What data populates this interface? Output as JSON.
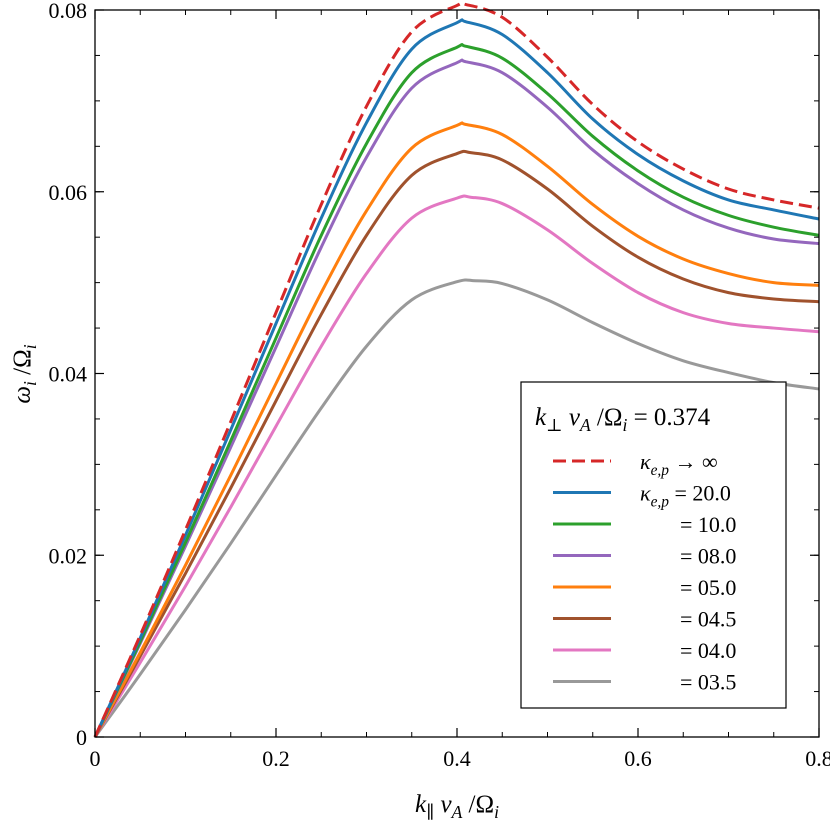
{
  "chart_data": {
    "type": "line",
    "xlabel": {
      "pre": "k",
      "sub1": "∥",
      "mid": " v",
      "sub2": "A",
      "slash": " /",
      "big": "Ω",
      "sub3": "i"
    },
    "ylabel": {
      "pre": "ω",
      "sub1": "i",
      "slash": " /",
      "big": "Ω",
      "sub2": "i"
    },
    "xlim": [
      0,
      0.8
    ],
    "ylim": [
      0,
      0.08
    ],
    "xticks": [
      0,
      0.2,
      0.4,
      0.6,
      0.8
    ],
    "xtick_labels": [
      "0",
      "0.2",
      "0.4",
      "0.6",
      "0.8"
    ],
    "yticks": [
      0,
      0.02,
      0.04,
      0.06,
      0.08
    ],
    "ytick_labels": [
      "0",
      "0.02",
      "0.04",
      "0.06",
      "0.08"
    ],
    "grid": false,
    "legend": {
      "placement": "bottom-right",
      "title": {
        "pre": "k",
        "sub1": "⊥",
        "mid": " v",
        "sub2": "A",
        "slash": " /",
        "big": "Ω",
        "sub3": "i",
        "value": " = 0.374"
      },
      "kappa_symbol": "κ",
      "kappa_sub": "e,p"
    },
    "series": [
      {
        "label": "→ ∞",
        "show_kappa": true,
        "color": "#d62728",
        "dashed": true,
        "x": [
          0,
          0.05,
          0.1,
          0.15,
          0.2,
          0.25,
          0.3,
          0.35,
          0.4,
          0.41,
          0.45,
          0.5,
          0.55,
          0.6,
          0.65,
          0.7,
          0.75,
          0.8
        ],
        "y": [
          0,
          0.0112,
          0.0228,
          0.0347,
          0.0467,
          0.0586,
          0.0694,
          0.0776,
          0.0805,
          0.0806,
          0.0792,
          0.0748,
          0.0696,
          0.0655,
          0.0625,
          0.0603,
          0.0591,
          0.0582
        ]
      },
      {
        "label": "= 20.0",
        "show_kappa": true,
        "color": "#1f77b4",
        "dashed": false,
        "x": [
          0,
          0.05,
          0.1,
          0.15,
          0.2,
          0.25,
          0.3,
          0.35,
          0.4,
          0.41,
          0.45,
          0.5,
          0.55,
          0.6,
          0.65,
          0.7,
          0.75,
          0.8
        ],
        "y": [
          0,
          0.0109,
          0.0222,
          0.0338,
          0.0455,
          0.0571,
          0.0676,
          0.0757,
          0.0786,
          0.0787,
          0.0773,
          0.0731,
          0.068,
          0.0641,
          0.0612,
          0.0591,
          0.058,
          0.057
        ]
      },
      {
        "label": "= 10.0",
        "show_kappa": false,
        "color": "#2ca02c",
        "dashed": false,
        "x": [
          0,
          0.05,
          0.1,
          0.15,
          0.2,
          0.25,
          0.3,
          0.35,
          0.4,
          0.41,
          0.45,
          0.5,
          0.55,
          0.6,
          0.65,
          0.7,
          0.75,
          0.8
        ],
        "y": [
          0,
          0.0105,
          0.0214,
          0.0326,
          0.0439,
          0.0552,
          0.0653,
          0.0731,
          0.0759,
          0.076,
          0.0747,
          0.0708,
          0.0661,
          0.0623,
          0.0594,
          0.0574,
          0.0561,
          0.0552
        ]
      },
      {
        "label": "= 08.0",
        "show_kappa": false,
        "color": "#9467bd",
        "dashed": false,
        "x": [
          0,
          0.05,
          0.1,
          0.15,
          0.2,
          0.25,
          0.3,
          0.35,
          0.4,
          0.41,
          0.45,
          0.5,
          0.55,
          0.6,
          0.65,
          0.7,
          0.75,
          0.8
        ],
        "y": [
          0,
          0.0103,
          0.021,
          0.0319,
          0.0429,
          0.0539,
          0.0638,
          0.0714,
          0.0742,
          0.0743,
          0.0731,
          0.0693,
          0.0646,
          0.0609,
          0.058,
          0.056,
          0.0548,
          0.0543
        ]
      },
      {
        "label": "= 05.0",
        "show_kappa": false,
        "color": "#ff7f0e",
        "dashed": false,
        "x": [
          0,
          0.05,
          0.1,
          0.15,
          0.2,
          0.25,
          0.3,
          0.35,
          0.4,
          0.41,
          0.45,
          0.5,
          0.55,
          0.6,
          0.65,
          0.7,
          0.75,
          0.8
        ],
        "y": [
          0,
          0.0093,
          0.0189,
          0.0288,
          0.0389,
          0.0489,
          0.0579,
          0.0648,
          0.0673,
          0.0674,
          0.0663,
          0.0628,
          0.0586,
          0.0551,
          0.0526,
          0.051,
          0.05,
          0.0497
        ]
      },
      {
        "label": "= 04.5",
        "show_kappa": false,
        "color": "#a0522d",
        "dashed": false,
        "x": [
          0,
          0.05,
          0.1,
          0.15,
          0.2,
          0.25,
          0.3,
          0.35,
          0.4,
          0.415,
          0.45,
          0.5,
          0.55,
          0.6,
          0.65,
          0.7,
          0.75,
          0.8
        ],
        "y": [
          0,
          0.0089,
          0.018,
          0.0274,
          0.037,
          0.0465,
          0.0552,
          0.0618,
          0.0642,
          0.0643,
          0.0635,
          0.0603,
          0.0562,
          0.0528,
          0.0504,
          0.0489,
          0.0482,
          0.0479
        ]
      },
      {
        "label": "= 04.0",
        "show_kappa": false,
        "color": "#e377c2",
        "dashed": false,
        "x": [
          0,
          0.05,
          0.1,
          0.15,
          0.2,
          0.25,
          0.3,
          0.35,
          0.4,
          0.415,
          0.45,
          0.5,
          0.55,
          0.6,
          0.65,
          0.7,
          0.75,
          0.8
        ],
        "y": [
          0,
          0.0082,
          0.0166,
          0.0253,
          0.0342,
          0.043,
          0.051,
          0.0571,
          0.0593,
          0.0594,
          0.0587,
          0.0558,
          0.0521,
          0.0489,
          0.0467,
          0.0455,
          0.045,
          0.0446
        ]
      },
      {
        "label": "= 03.5",
        "show_kappa": false,
        "color": "#999999",
        "dashed": false,
        "x": [
          0,
          0.05,
          0.1,
          0.15,
          0.2,
          0.25,
          0.3,
          0.35,
          0.4,
          0.42,
          0.45,
          0.5,
          0.55,
          0.6,
          0.65,
          0.7,
          0.75,
          0.8
        ],
        "y": [
          0,
          0.0069,
          0.014,
          0.0213,
          0.0288,
          0.0362,
          0.043,
          0.0481,
          0.0501,
          0.0502,
          0.0499,
          0.0481,
          0.0456,
          0.0433,
          0.0414,
          0.0401,
          0.039,
          0.0383
        ]
      }
    ]
  }
}
